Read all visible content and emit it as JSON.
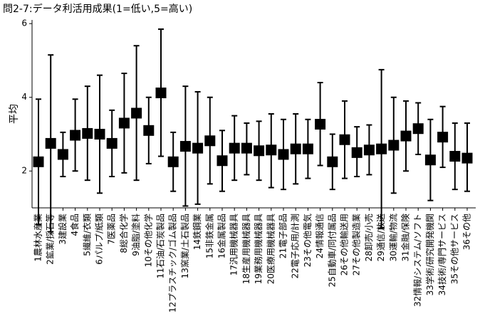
{
  "chart_data": {
    "type": "errorbar",
    "title": "問2-7:データ利活用成果(1=低い,5=高い)",
    "xlabel": "",
    "ylabel": "平均",
    "ylim": [
      1.0,
      6.1
    ],
    "yticks": [
      "2",
      "4",
      "6"
    ],
    "ytick_values": [
      2,
      4,
      6
    ],
    "grid": false,
    "categories": [
      "1農林水産業",
      "2鉱業/採石等",
      "3建設業",
      "4食品",
      "5繊維/衣類",
      "6パルプ/紙類",
      "7医薬品",
      "8総合化学",
      "9油脂/塗料",
      "10その他化学",
      "11石油/石炭製品",
      "12プラスチック/ゴム製品",
      "13窯業/土石製品",
      "14鉄鋼業",
      "15非鉄金属",
      "16金属製品",
      "17汎用機械器具",
      "18生産用機械器具",
      "19業務用機械器具",
      "20医療用機械器具",
      "21電子部品",
      "22電子応用/計測",
      "23その他電気",
      "24情報通信",
      "25自動車/同付属品",
      "26その他輸送用",
      "27その他製造業",
      "28卸売/小売",
      "29通信/放送",
      "30運輸/物流",
      "31金融/保険",
      "32情報/システム/ソフト",
      "33学術/研究開発機関",
      "34技術/専門サービス",
      "35その他サービス",
      "36その他"
    ],
    "series": [
      {
        "mean": [
          2.25,
          2.75,
          2.45,
          2.97,
          3.02,
          3.0,
          2.75,
          3.3,
          3.57,
          3.1,
          4.12,
          2.25,
          2.67,
          2.62,
          2.82,
          2.28,
          2.62,
          2.62,
          2.55,
          2.57,
          2.45,
          2.6,
          2.6,
          3.27,
          2.25,
          2.85,
          2.5,
          2.57,
          2.6,
          2.7,
          2.95,
          3.15,
          2.3,
          2.92,
          2.4,
          2.35
        ],
        "lower": [
          0.55,
          0.35,
          1.85,
          2.0,
          1.75,
          1.4,
          1.85,
          1.95,
          1.75,
          2.2,
          2.4,
          1.45,
          1.05,
          1.1,
          1.65,
          1.45,
          1.75,
          1.9,
          1.75,
          1.55,
          1.5,
          1.65,
          1.8,
          2.15,
          1.5,
          1.8,
          1.85,
          1.9,
          0.45,
          1.4,
          2.0,
          2.45,
          1.2,
          2.1,
          1.5,
          1.45
        ],
        "upper": [
          3.95,
          5.15,
          3.05,
          3.95,
          4.3,
          4.6,
          3.65,
          4.65,
          5.4,
          4.0,
          5.85,
          3.05,
          4.3,
          4.15,
          4.0,
          3.1,
          3.5,
          3.3,
          3.35,
          3.55,
          3.4,
          3.55,
          3.4,
          4.4,
          3.0,
          3.9,
          3.2,
          3.25,
          4.75,
          4.0,
          3.9,
          3.85,
          3.4,
          3.75,
          3.3,
          3.3
        ]
      }
    ]
  }
}
